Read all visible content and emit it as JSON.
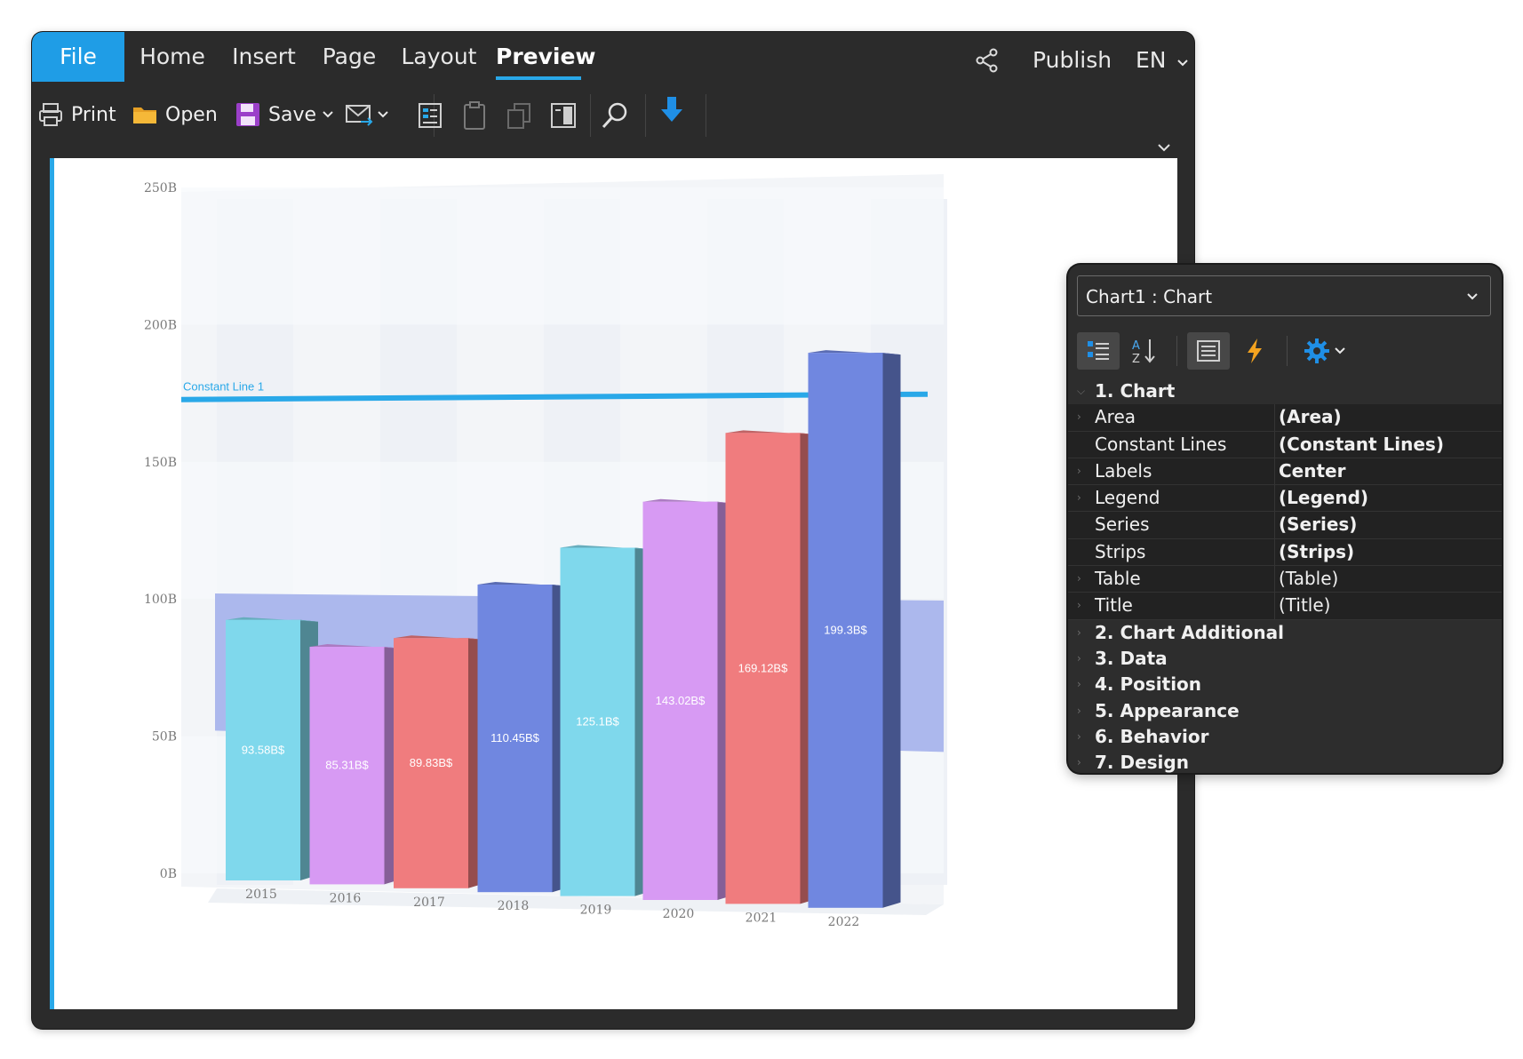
{
  "ribbon": {
    "tabs": [
      "File",
      "Home",
      "Insert",
      "Page",
      "Layout",
      "Preview"
    ],
    "active_tab": "Preview",
    "publish_label": "Publish",
    "language": "EN"
  },
  "toolbar": {
    "print_label": "Print",
    "open_label": "Open",
    "save_label": "Save"
  },
  "chart_data": {
    "type": "bar",
    "categories": [
      "2015",
      "2016",
      "2017",
      "2018",
      "2019",
      "2020",
      "2021",
      "2022"
    ],
    "values": [
      93.58,
      85.31,
      89.83,
      110.45,
      125.1,
      143.02,
      169.12,
      199.3
    ],
    "data_labels": [
      "93.58B$",
      "85.31B$",
      "89.83B$",
      "110.45B$",
      "125.1B$",
      "143.02B$",
      "169.12B$",
      "199.3B$"
    ],
    "colors": [
      "#7fd8ec",
      "#d79af3",
      "#f07c7e",
      "#7087e0",
      "#7fd8ec",
      "#d79af3",
      "#f07c7e",
      "#7087e0"
    ],
    "ylim": [
      0,
      250
    ],
    "y_ticks": [
      "0B",
      "50B",
      "100B",
      "150B",
      "200B",
      "250B"
    ],
    "constant_line": {
      "label": "Constant Line 1",
      "value": 174,
      "color": "#29a8e8"
    },
    "strip": {
      "from": 52,
      "to": 102,
      "color": "#a8b4ec"
    },
    "style": "3d"
  },
  "properties": {
    "selected_object": "Chart1 : Chart",
    "categories": [
      {
        "label": "1. Chart",
        "expanded": true,
        "items": [
          {
            "name": "Area",
            "value": "(Area)",
            "bold": true
          },
          {
            "name": "Constant Lines",
            "value": "(Constant Lines)",
            "bold": true
          },
          {
            "name": "Labels",
            "value": "Center",
            "bold": true
          },
          {
            "name": "Legend",
            "value": "(Legend)",
            "bold": true
          },
          {
            "name": "Series",
            "value": "(Series)",
            "bold": true
          },
          {
            "name": "Strips",
            "value": "(Strips)",
            "bold": true
          },
          {
            "name": "Table",
            "value": "(Table)",
            "bold": false
          },
          {
            "name": "Title",
            "value": "(Title)",
            "bold": false
          }
        ]
      },
      {
        "label": "2. Chart  Additional",
        "expanded": false
      },
      {
        "label": "3. Data",
        "expanded": false
      },
      {
        "label": "4. Position",
        "expanded": false
      },
      {
        "label": "5. Appearance",
        "expanded": false
      },
      {
        "label": "6. Behavior",
        "expanded": false
      },
      {
        "label": "7. Design",
        "expanded": false
      }
    ]
  }
}
